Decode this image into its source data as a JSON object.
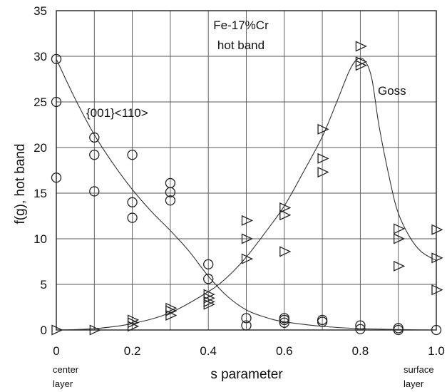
{
  "chart_data": {
    "type": "scatter",
    "xlabel": "s parameter",
    "ylabel": "f(g), hot band",
    "xlim": [
      0,
      1.0
    ],
    "ylim": [
      0,
      35
    ],
    "x_ticks": [
      "0",
      "0.2",
      "0.4",
      "0.6",
      "0.8",
      "1.0"
    ],
    "y_ticks": [
      "0",
      "5",
      "10",
      "15",
      "20",
      "25",
      "30",
      "35"
    ],
    "grid": true,
    "annotations": {
      "title_line1": "Fe-17%Cr",
      "title_line2": "hot band",
      "series1_label": "{001}<110>",
      "series2_label": "Goss",
      "left_note_line1": "center",
      "left_note_line2": "layer",
      "right_note_line1": "surface",
      "right_note_line2": "layer"
    },
    "series": [
      {
        "name": "{001}<110>",
        "marker": "circle",
        "points": [
          [
            0.0,
            29.7
          ],
          [
            0.0,
            25.0
          ],
          [
            0.0,
            16.7
          ],
          [
            0.1,
            21.1
          ],
          [
            0.1,
            19.2
          ],
          [
            0.1,
            15.2
          ],
          [
            0.2,
            19.2
          ],
          [
            0.2,
            14.0
          ],
          [
            0.2,
            12.3
          ],
          [
            0.3,
            16.1
          ],
          [
            0.3,
            15.1
          ],
          [
            0.3,
            14.2
          ],
          [
            0.4,
            7.2
          ],
          [
            0.4,
            5.6
          ],
          [
            0.5,
            1.3
          ],
          [
            0.5,
            0.5
          ],
          [
            0.6,
            1.3
          ],
          [
            0.6,
            1.1
          ],
          [
            0.6,
            0.8
          ],
          [
            0.7,
            1.1
          ],
          [
            0.7,
            0.9
          ],
          [
            0.8,
            0.5
          ],
          [
            0.8,
            0.1
          ],
          [
            0.9,
            0.2
          ],
          [
            0.9,
            0.0
          ],
          [
            1.0,
            0.0
          ]
        ],
        "fit_curve": [
          [
            0.0,
            29.7
          ],
          [
            0.05,
            25.3
          ],
          [
            0.1,
            21.4
          ],
          [
            0.15,
            18.2
          ],
          [
            0.2,
            15.4
          ],
          [
            0.25,
            13.0
          ],
          [
            0.3,
            10.9
          ],
          [
            0.35,
            8.6
          ],
          [
            0.4,
            5.9
          ],
          [
            0.45,
            3.7
          ],
          [
            0.5,
            2.2
          ],
          [
            0.55,
            1.4
          ],
          [
            0.6,
            0.9
          ],
          [
            0.7,
            0.4
          ],
          [
            0.8,
            0.15
          ],
          [
            0.9,
            0.05
          ],
          [
            1.0,
            0.0
          ]
        ]
      },
      {
        "name": "Goss",
        "marker": "triangle-right",
        "points": [
          [
            0.0,
            0.0
          ],
          [
            0.1,
            0.0
          ],
          [
            0.2,
            1.1
          ],
          [
            0.2,
            0.8
          ],
          [
            0.2,
            0.4
          ],
          [
            0.3,
            2.4
          ],
          [
            0.3,
            2.1
          ],
          [
            0.3,
            1.6
          ],
          [
            0.4,
            3.9
          ],
          [
            0.4,
            3.5
          ],
          [
            0.4,
            3.1
          ],
          [
            0.4,
            2.8
          ],
          [
            0.5,
            12.0
          ],
          [
            0.5,
            10.0
          ],
          [
            0.5,
            7.8
          ],
          [
            0.6,
            13.4
          ],
          [
            0.6,
            12.6
          ],
          [
            0.6,
            8.6
          ],
          [
            0.7,
            22.0
          ],
          [
            0.7,
            18.8
          ],
          [
            0.7,
            17.3
          ],
          [
            0.8,
            31.1
          ],
          [
            0.8,
            29.4
          ],
          [
            0.8,
            29.0
          ],
          [
            0.9,
            11.1
          ],
          [
            0.9,
            10.0
          ],
          [
            0.9,
            7.0
          ],
          [
            1.0,
            11.0
          ],
          [
            1.0,
            7.9
          ],
          [
            1.0,
            4.4
          ]
        ],
        "fit_curve": [
          [
            0.0,
            0.0
          ],
          [
            0.1,
            0.15
          ],
          [
            0.2,
            0.7
          ],
          [
            0.3,
            1.9
          ],
          [
            0.4,
            4.2
          ],
          [
            0.45,
            5.8
          ],
          [
            0.5,
            8.0
          ],
          [
            0.55,
            10.7
          ],
          [
            0.6,
            13.6
          ],
          [
            0.65,
            17.3
          ],
          [
            0.7,
            21.2
          ],
          [
            0.74,
            25.2
          ],
          [
            0.77,
            28.3
          ],
          [
            0.79,
            29.6
          ],
          [
            0.81,
            29.6
          ],
          [
            0.83,
            27.6
          ],
          [
            0.85,
            22.2
          ],
          [
            0.88,
            16.0
          ],
          [
            0.9,
            12.8
          ],
          [
            0.93,
            10.2
          ],
          [
            0.96,
            8.6
          ],
          [
            1.0,
            7.6
          ]
        ]
      }
    ]
  }
}
